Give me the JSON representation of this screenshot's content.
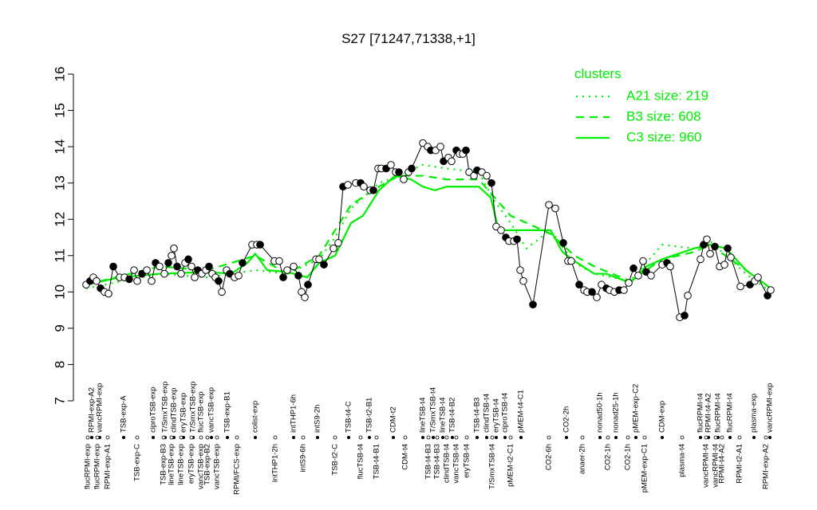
{
  "chart_data": {
    "type": "line",
    "title": "S27 [71247,71338,+1]",
    "ylim": [
      7,
      16
    ],
    "yticks": [
      7,
      8,
      9,
      10,
      11,
      12,
      13,
      14,
      15,
      16
    ],
    "xlim": [
      0,
      880
    ],
    "legend_title": "clusters",
    "legend_position": "top-right",
    "xticks_top": [
      {
        "value": 15,
        "label": "RPMI-exp-A2"
      },
      {
        "value": 25,
        "label": "vancRPMI-exp"
      },
      {
        "value": 55,
        "label": "TSB-exp-A"
      },
      {
        "value": 92,
        "label": "ciproTSB-exp"
      },
      {
        "value": 107,
        "label": "T/SmxTSB-exp"
      },
      {
        "value": 118,
        "label": "clindTSB-exp"
      },
      {
        "value": 130,
        "label": "eryTSB-exp"
      },
      {
        "value": 142,
        "label": "T/SmxTSB-exp"
      },
      {
        "value": 152,
        "label": "flucTSB-exp"
      },
      {
        "value": 165,
        "label": "vancTSB-exp"
      },
      {
        "value": 185,
        "label": "TSB-exp-B1"
      },
      {
        "value": 220,
        "label": "colist-exp"
      },
      {
        "value": 268,
        "label": "intTHP1-6h"
      },
      {
        "value": 298,
        "label": "intS9-2h"
      },
      {
        "value": 337,
        "label": "TSB-t4-C"
      },
      {
        "value": 363,
        "label": "TSB-t2-B1"
      },
      {
        "value": 393,
        "label": "CDM-t2"
      },
      {
        "value": 430,
        "label": "lineTSB-t4"
      },
      {
        "value": 443,
        "label": "T/SmxTSB-t4"
      },
      {
        "value": 455,
        "label": "lineTSB-t4"
      },
      {
        "value": 467,
        "label": "TSB-t4-B2"
      },
      {
        "value": 498,
        "label": "TSB-t4-B3"
      },
      {
        "value": 510,
        "label": "clindTSB-t4"
      },
      {
        "value": 522,
        "label": "eryTSB-t4"
      },
      {
        "value": 533,
        "label": "ciproTSB-t4"
      },
      {
        "value": 553,
        "label": "pMEM-t4-C1"
      },
      {
        "value": 610,
        "label": "CO2-2h"
      },
      {
        "value": 652,
        "label": "nonad50-1h"
      },
      {
        "value": 672,
        "label": "nonad25-1h"
      },
      {
        "value": 697,
        "label": "pMEM-exp-C2"
      },
      {
        "value": 730,
        "label": "CDM-exp"
      },
      {
        "value": 778,
        "label": "flucRPMI-t4"
      },
      {
        "value": 788,
        "label": "RPMI-t4-A2"
      },
      {
        "value": 800,
        "label": "flucRPMI-t4"
      },
      {
        "value": 815,
        "label": "flucRPMI-t4"
      },
      {
        "value": 845,
        "label": "plasma-exp"
      },
      {
        "value": 865,
        "label": "vancRPMI-exp"
      }
    ],
    "xticks_bottom": [
      {
        "value": 10,
        "label": "flucRPMI-exp"
      },
      {
        "value": 22,
        "label": "flucRPMI-exp"
      },
      {
        "value": 35,
        "label": "RPMI-exp-A1"
      },
      {
        "value": 72,
        "label": "TSB-exp-C"
      },
      {
        "value": 105,
        "label": "TSB-exp-B3"
      },
      {
        "value": 115,
        "label": "lineTSB-exp"
      },
      {
        "value": 127,
        "label": "lineTSB-exp"
      },
      {
        "value": 140,
        "label": "eryTSB-exp"
      },
      {
        "value": 152,
        "label": "vancTSB-exp"
      },
      {
        "value": 160,
        "label": "TSB-exp-B2"
      },
      {
        "value": 172,
        "label": "vancTSB-exp"
      },
      {
        "value": 197,
        "label": "RPMI/FCS-exp"
      },
      {
        "value": 245,
        "label": "intTHP1-2h"
      },
      {
        "value": 280,
        "label": "intS9-6h"
      },
      {
        "value": 320,
        "label": "TSB-t2-C"
      },
      {
        "value": 352,
        "label": "flucTSB-t4"
      },
      {
        "value": 372,
        "label": "TSB-t4-B1"
      },
      {
        "value": 408,
        "label": "CDM-t4"
      },
      {
        "value": 437,
        "label": "TSB-t4-B3"
      },
      {
        "value": 448,
        "label": "TSB-t4-B3"
      },
      {
        "value": 460,
        "label": "clindTSB-t4"
      },
      {
        "value": 472,
        "label": "vancTSB-t4"
      },
      {
        "value": 485,
        "label": "eryTSB-t4"
      },
      {
        "value": 517,
        "label": "T/SmxTSB-t4"
      },
      {
        "value": 540,
        "label": "pMEM-t2-C1"
      },
      {
        "value": 588,
        "label": "CO2-6h"
      },
      {
        "value": 630,
        "label": "anaer-2h"
      },
      {
        "value": 662,
        "label": "CO2-1h"
      },
      {
        "value": 687,
        "label": "CO2-1h"
      },
      {
        "value": 708,
        "label": "pMEM-exp-C1"
      },
      {
        "value": 755,
        "label": "plasma-t4"
      },
      {
        "value": 785,
        "label": "vancRPMI-t4"
      },
      {
        "value": 797,
        "label": "vancRPMI-t4"
      },
      {
        "value": 805,
        "label": "RPMI-t4-A2"
      },
      {
        "value": 827,
        "label": "RPMI-t2-A1"
      },
      {
        "value": 860,
        "label": "RPMI-exp-A2"
      }
    ],
    "points": {
      "color": "#000000",
      "x": [
        8,
        13,
        17,
        21,
        26,
        31,
        36,
        42,
        50,
        56,
        62,
        68,
        72,
        78,
        84,
        90,
        95,
        100,
        106,
        111,
        115,
        118,
        122,
        127,
        132,
        136,
        140,
        144,
        148,
        153,
        158,
        162,
        166,
        170,
        174,
        178,
        184,
        188,
        194,
        199,
        204,
        216,
        222,
        226,
        244,
        250,
        255,
        260,
        268,
        274,
        278,
        282,
        286,
        296,
        300,
        306,
        318,
        324,
        330,
        336,
        346,
        352,
        356,
        364,
        368,
        374,
        378,
        384,
        390,
        396,
        400,
        406,
        412,
        416,
        430,
        436,
        440,
        446,
        452,
        456,
        462,
        466,
        472,
        476,
        480,
        484,
        488,
        494,
        498,
        504,
        510,
        516,
        522,
        528,
        534,
        538,
        544,
        548,
        552,
        556,
        568,
        588,
        596,
        606,
        612,
        616,
        626,
        632,
        636,
        642,
        648,
        654,
        660,
        664,
        670,
        676,
        682,
        688,
        694,
        700,
        706,
        710,
        716,
        730,
        736,
        740,
        752,
        758,
        762,
        778,
        782,
        786,
        790,
        796,
        802,
        808,
        812,
        816,
        828,
        840,
        846,
        850,
        862,
        866
      ],
      "values": [
        10.2,
        10.3,
        10.4,
        10.3,
        10.1,
        10.0,
        9.95,
        10.7,
        10.4,
        10.4,
        10.35,
        10.6,
        10.3,
        10.5,
        10.6,
        10.3,
        10.8,
        10.7,
        10.5,
        10.8,
        11.0,
        11.2,
        10.7,
        10.5,
        10.8,
        10.9,
        10.7,
        10.4,
        10.6,
        10.5,
        10.6,
        10.7,
        10.5,
        10.4,
        10.3,
        10.0,
        10.6,
        10.5,
        10.4,
        10.45,
        10.8,
        11.3,
        11.3,
        11.3,
        10.85,
        10.85,
        10.4,
        10.6,
        10.7,
        10.45,
        10.0,
        9.85,
        10.2,
        10.9,
        10.9,
        10.75,
        11.2,
        11.35,
        12.9,
        12.95,
        13.0,
        13.0,
        12.9,
        12.8,
        12.8,
        13.4,
        13.4,
        13.4,
        13.5,
        13.3,
        13.3,
        13.1,
        13.3,
        13.4,
        14.1,
        14.0,
        13.9,
        13.9,
        14.0,
        13.6,
        13.7,
        13.6,
        13.9,
        13.8,
        13.8,
        13.9,
        13.3,
        13.2,
        13.35,
        13.3,
        13.2,
        13.0,
        11.8,
        11.7,
        11.5,
        11.4,
        11.4,
        11.45,
        10.6,
        10.3,
        9.65,
        12.4,
        12.3,
        11.35,
        10.85,
        10.85,
        10.2,
        10.05,
        10.0,
        10.0,
        9.85,
        10.2,
        10.1,
        10.05,
        10.0,
        10.05,
        10.05,
        10.25,
        10.65,
        10.45,
        10.85,
        10.55,
        10.45,
        10.75,
        10.8,
        10.7,
        9.3,
        9.35,
        9.9,
        10.9,
        11.3,
        11.45,
        11.05,
        11.25,
        10.7,
        10.75,
        11.2,
        10.95,
        10.15,
        10.2,
        10.3,
        10.4,
        9.9,
        10.05
      ]
    },
    "series": [
      {
        "name": "A21 size: 219",
        "color": "#00ee00",
        "dash": "dotted",
        "x": [
          8,
          100,
          160,
          220,
          260,
          300,
          320,
          340,
          375,
          400,
          430,
          460,
          500,
          520,
          540,
          560,
          590,
          620,
          645,
          690,
          730,
          770,
          790,
          835,
          866
        ],
        "values": [
          10.1,
          10.5,
          10.4,
          10.6,
          10.5,
          10.9,
          11.5,
          12.3,
          13.0,
          13.2,
          13.5,
          13.4,
          13.3,
          12.5,
          11.9,
          11.2,
          11.7,
          10.8,
          10.5,
          10.3,
          11.3,
          11.2,
          11.4,
          10.5,
          10.0
        ]
      },
      {
        "name": "B3 size: 608",
        "color": "#00ee00",
        "dash": "dashed",
        "x": [
          8,
          100,
          160,
          220,
          260,
          300,
          320,
          340,
          375,
          400,
          430,
          460,
          500,
          520,
          540,
          560,
          590,
          620,
          645,
          690,
          730,
          770,
          790,
          835,
          866
        ],
        "values": [
          10.2,
          10.7,
          10.6,
          11.0,
          10.5,
          11.0,
          11.7,
          12.4,
          12.9,
          13.2,
          13.2,
          13.1,
          13.1,
          12.6,
          12.1,
          11.9,
          11.6,
          11.0,
          10.7,
          10.3,
          10.9,
          11.1,
          11.3,
          10.6,
          10.1
        ]
      },
      {
        "name": "C3 size: 960",
        "color": "#00ee00",
        "dash": "solid",
        "x": [
          8,
          50,
          100,
          160,
          190,
          210,
          220,
          235,
          260,
          285,
          300,
          320,
          340,
          355,
          375,
          395,
          415,
          430,
          445,
          460,
          480,
          500,
          515,
          525,
          540,
          560,
          590,
          605,
          620,
          645,
          660,
          690,
          710,
          730,
          770,
          790,
          810,
          835,
          866
        ],
        "values": [
          10.2,
          10.4,
          10.5,
          10.55,
          10.5,
          10.8,
          11.05,
          10.6,
          10.55,
          10.4,
          10.8,
          11.0,
          11.9,
          12.1,
          12.8,
          13.2,
          13.1,
          12.9,
          12.8,
          12.9,
          12.9,
          12.9,
          12.6,
          11.7,
          11.7,
          11.7,
          11.7,
          11.1,
          10.85,
          10.5,
          10.5,
          10.25,
          10.7,
          10.9,
          11.2,
          11.3,
          11.2,
          10.6,
          10.1
        ]
      }
    ]
  }
}
